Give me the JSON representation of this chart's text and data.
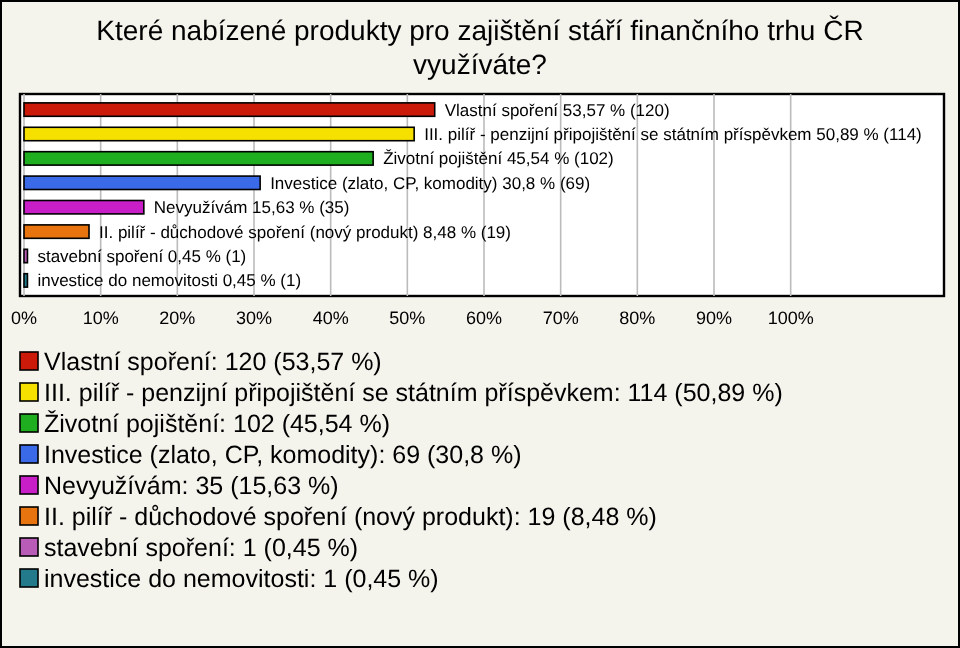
{
  "chart_data": {
    "type": "bar",
    "orientation": "horizontal",
    "title": "Které nabízené produkty pro zajištění stáří finančního trhu ČR využíváte?",
    "categories": [
      "Vlastní spoření",
      "III. pilíř - penzijní připojištění se státním příspěvkem",
      "Životní pojištění",
      "Investice (zlato, CP, komodity)",
      "Nevyužívám",
      "II. pilíř - důchodové spoření (nový produkt)",
      "stavební spoření",
      "investice do nemovitosti"
    ],
    "values": [
      53.57,
      50.89,
      45.54,
      30.8,
      15.63,
      8.48,
      0.45,
      0.45
    ],
    "value_labels": [
      "53,57 % (120)",
      "50,89 % (114)",
      "45,54 % (102)",
      "30,8 % (69)",
      "15,63 % (35)",
      "8,48 % (19)",
      "0,45 % (1)",
      "0,45 % (1)"
    ],
    "colors": [
      "#cc1a0a",
      "#f5e000",
      "#1fae1f",
      "#3b6ae8",
      "#c81ec8",
      "#e8740f",
      "#b85cb8",
      "#237a8a"
    ],
    "xlim": [
      0,
      120
    ],
    "xticks": [
      {
        "value": 0,
        "label": "0%"
      },
      {
        "value": 10,
        "label": "10%"
      },
      {
        "value": 20,
        "label": "20%"
      },
      {
        "value": 30,
        "label": "30%"
      },
      {
        "value": 40,
        "label": "40%"
      },
      {
        "value": 50,
        "label": "50%"
      },
      {
        "value": 60,
        "label": "60%"
      },
      {
        "value": 70,
        "label": "70%"
      },
      {
        "value": 80,
        "label": "80%"
      },
      {
        "value": 90,
        "label": "90%"
      },
      {
        "value": 100,
        "label": "100%"
      }
    ],
    "grid": "x",
    "annotations": [
      "Vlastní spoření: 120 (53,57 %)",
      "III. pilíř - penzijní připojištění se státním příspěvkem: 114 (50,89 %)",
      "Životní pojištění: 102 (45,54 %)",
      "Investice (zlato, CP, komodity): 69 (30,8 %)",
      "Nevyužívám: 35 (15,63 %)",
      "II. pilíř - důchodové spoření (nový produkt): 19 (8,48 %)",
      "stavební spoření: 1 (0,45 %)",
      "investice do nemovitosti: 1 (0,45 %)"
    ]
  }
}
